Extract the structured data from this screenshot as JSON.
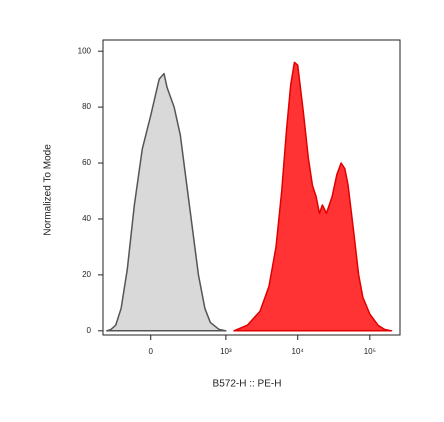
{
  "chart_data": {
    "type": "area",
    "xscale": "biexponential",
    "xlabel": "B572-H :: PE-H",
    "ylabel": "Normalized To Mode",
    "xlim": [
      -400,
      262144
    ],
    "ylim": [
      -1.5,
      104
    ],
    "xticks": [
      0,
      {
        "value": 1000,
        "label": "10³"
      },
      {
        "value": 10000,
        "label": "10⁴"
      },
      {
        "value": 100000,
        "label": "10⁵"
      }
    ],
    "yticks": [
      0,
      20,
      40,
      60,
      80,
      100
    ],
    "series": [
      {
        "color": "#d9d9d9",
        "line_color": "#555555",
        "x": [
          -350,
          -300,
          -250,
          -200,
          -150,
          -100,
          -50,
          0,
          50,
          80,
          100,
          150,
          200,
          250,
          300,
          400,
          500,
          600,
          800,
          1000
        ],
        "values": [
          0,
          0.5,
          2,
          8,
          22,
          45,
          65,
          77,
          90,
          92,
          87,
          80,
          70,
          55,
          42,
          20,
          8,
          3,
          0.5,
          0
        ]
      },
      {
        "color": "#ff3333",
        "line_color": "#e00000",
        "x": [
          1300,
          2000,
          3000,
          4000,
          5000,
          6000,
          7000,
          8000,
          9000,
          10000,
          12000,
          14000,
          16000,
          18000,
          20000,
          22000,
          25000,
          30000,
          35000,
          40000,
          45000,
          50000,
          60000,
          70000,
          80000,
          100000,
          130000,
          160000,
          200000
        ],
        "values": [
          0,
          2,
          7,
          16,
          30,
          50,
          72,
          88,
          96,
          95,
          78,
          62,
          52,
          48,
          42,
          45,
          42,
          48,
          56,
          60,
          58,
          52,
          35,
          20,
          12,
          6,
          2,
          0.5,
          0
        ]
      }
    ]
  }
}
